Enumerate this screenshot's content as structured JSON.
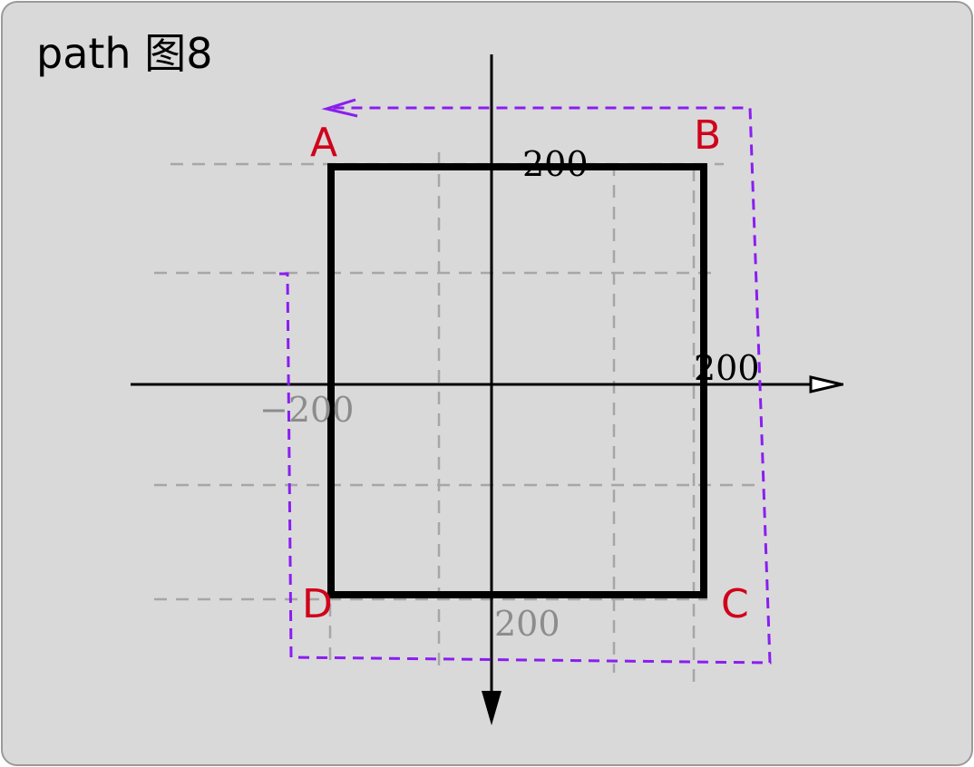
{
  "title": "path 图8",
  "corners": {
    "a": "A",
    "b": "B",
    "c": "C",
    "d": "D"
  },
  "ticks": {
    "top": "200",
    "right": "200",
    "left": "−200",
    "bottom": "200"
  },
  "colors": {
    "background": "#d9d9d9",
    "corner_label": "#d0021b",
    "path_outline": "#8a1ef0",
    "rectangle": "#000000",
    "grid": "#a6a6a6",
    "tick_grey": "#8c8c8c"
  }
}
